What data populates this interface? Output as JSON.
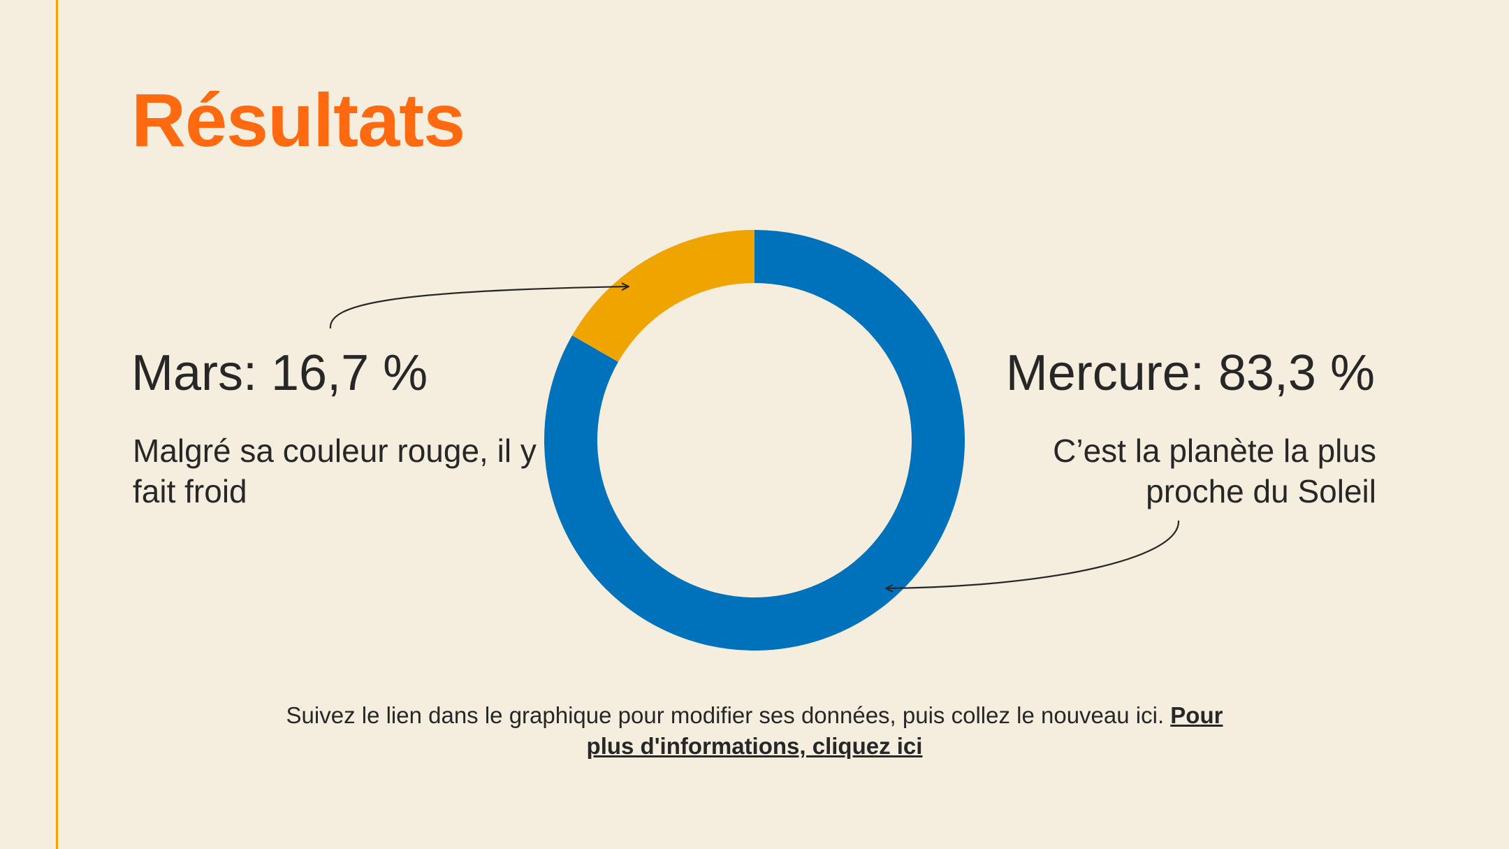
{
  "slide": {
    "title": "Résultats",
    "footer_text": "Suivez le lien dans le graphique pour modifier ses données, puis collez le nouveau ici.",
    "footer_link": "Pour plus d'informations, cliquez ici"
  },
  "annotations": {
    "left": {
      "heading": "Mars: 16,7 %",
      "description": "Malgré sa couleur rouge, il y fait froid"
    },
    "right": {
      "heading": "Mercure: 83,3 %",
      "description": "C’est la planète la plus proche du Soleil"
    }
  },
  "colors": {
    "background": "#f5eedf",
    "accent_rule": "#f0a400",
    "title": "#ff6a10",
    "text": "#272727"
  },
  "chart_data": {
    "type": "pie",
    "variant": "donut",
    "categories": [
      "Mercure",
      "Mars"
    ],
    "values": [
      83.3,
      16.7
    ],
    "colors": [
      "#0071bb",
      "#f0a400"
    ],
    "start": "top",
    "direction": "clockwise",
    "legend": "none"
  }
}
